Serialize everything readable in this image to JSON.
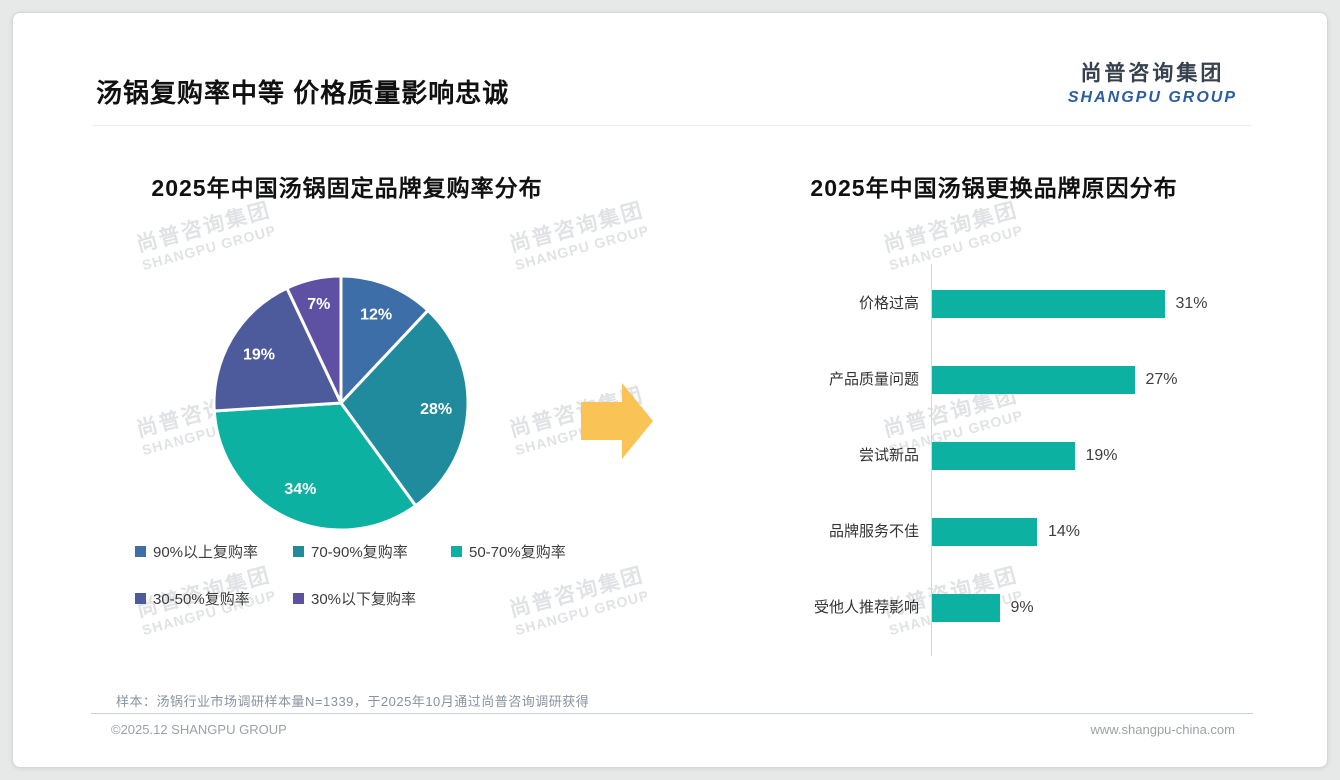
{
  "page": {
    "title": "汤锅复购率中等 价格质量影响忠诚",
    "logo": {
      "cn": "尚普咨询集团",
      "en": "SHANGPU GROUP"
    },
    "watermark": {
      "cn": "尚普咨询集团",
      "en": "SHANGPU GROUP"
    },
    "footer": {
      "sample_note": "样本：汤锅行业市场调研样本量N=1339，于2025年10月通过尚普咨询调研获得",
      "copyright": "©2025.12 SHANGPU GROUP",
      "website": "www.shangpu-china.com"
    },
    "arrow_color": "#f9c355"
  },
  "chart_data": [
    {
      "type": "pie",
      "title": "2025年中国汤锅固定品牌复购率分布",
      "labels": [
        "90%以上复购率",
        "70-90%复购率",
        "50-70%复购率",
        "30-50%复购率",
        "30%以下复购率"
      ],
      "values": [
        12,
        28,
        34,
        19,
        7
      ],
      "data_labels": [
        "12%",
        "28%",
        "34%",
        "19%",
        "7%"
      ],
      "colors": [
        "#3d6ea8",
        "#1f8b9d",
        "#0db1a2",
        "#4d5b9c",
        "#5e51a4"
      ],
      "start_angle_deg": 0,
      "direction": "clockwise",
      "legend_position": "bottom"
    },
    {
      "type": "bar",
      "orientation": "horizontal",
      "title": "2025年中国汤锅更换品牌原因分布",
      "categories": [
        "价格过高",
        "产品质量问题",
        "尝试新品",
        "品牌服务不佳",
        "受他人推荐影响"
      ],
      "values": [
        31,
        27,
        19,
        14,
        9
      ],
      "data_labels": [
        "31%",
        "27%",
        "19%",
        "14%",
        "9%"
      ],
      "bar_color": "#0db1a2",
      "xlim": [
        0,
        33
      ],
      "grid": false
    }
  ]
}
